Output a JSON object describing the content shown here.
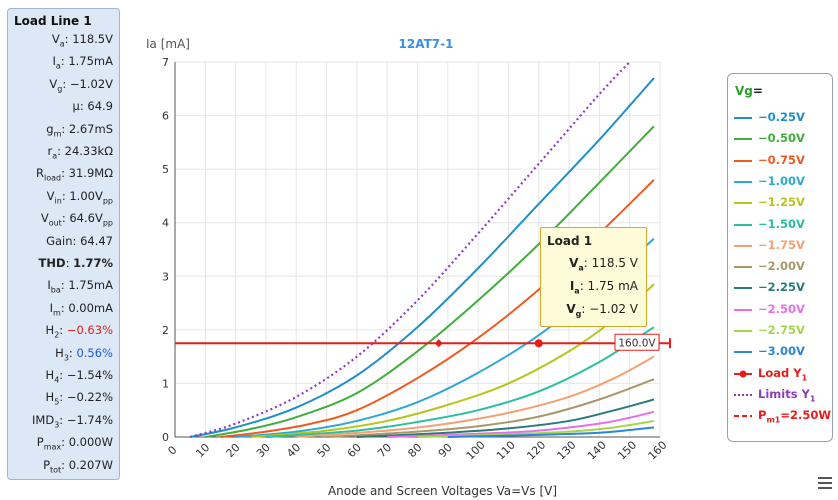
{
  "left_panel": {
    "title": "Load Line 1",
    "rows": [
      {
        "name": "V",
        "sub": "a",
        "value": "118.5V"
      },
      {
        "name": "I",
        "sub": "a",
        "value": "1.75mA"
      },
      {
        "name": "V",
        "sub": "g",
        "value": "−1.02V"
      },
      {
        "name": "μ",
        "sub": "",
        "value": "64.9"
      },
      {
        "name": "g",
        "sub": "m",
        "value": "2.67mS"
      },
      {
        "name": "r",
        "sub": "a",
        "value": "24.33kΩ"
      },
      {
        "name": "R",
        "sub": "load",
        "value": "31.9MΩ"
      },
      {
        "name": "V",
        "sub": "in",
        "value": "1.00V",
        "unit_sub": "pp"
      },
      {
        "name": "V",
        "sub": "out",
        "value": "64.6V",
        "unit_sub": "pp"
      },
      {
        "name": "Gain",
        "sub": "",
        "value": "64.47"
      },
      {
        "name": "THD",
        "sub": "",
        "value": "1.77%",
        "bold": true
      },
      {
        "name": "I",
        "sub": "ba",
        "value": "1.75mA"
      },
      {
        "name": "I",
        "sub": "m",
        "value": "0.00mA"
      },
      {
        "name": "H",
        "sub": "2",
        "value": "−0.63%",
        "color": "red"
      },
      {
        "name": "H",
        "sub": "3",
        "value": "0.56%",
        "color": "blue"
      },
      {
        "name": "H",
        "sub": "4",
        "value": "−1.54%"
      },
      {
        "name": "H",
        "sub": "5",
        "value": "−0.22%"
      },
      {
        "name": "IMD",
        "sub": "3",
        "value": "−1.74%"
      },
      {
        "name": "P",
        "sub": "max",
        "value": "0.000W"
      },
      {
        "name": "P",
        "sub": "tot",
        "value": "0.207W"
      }
    ]
  },
  "tooltip": {
    "title": "Load 1",
    "rows": [
      {
        "name": "V",
        "sub": "a",
        "value": "118.5 V"
      },
      {
        "name": "I",
        "sub": "a",
        "value": "1.75 mA"
      },
      {
        "name": "V",
        "sub": "g",
        "value": "−1.02 V"
      }
    ]
  },
  "legend": {
    "title_prefix": "Vg",
    "title_suffix": "=",
    "load_label": "Load Y",
    "load_label_sub": "1",
    "limits_label": "Limits Y",
    "limits_label_sub": "1",
    "pmax_label_main": "P",
    "pmax_label_sub": "m",
    "pmax_label_sub2": "1",
    "pmax_label_value": "=2.50W"
  },
  "chart_data": {
    "type": "line",
    "title": "12AT7-1",
    "xlabel": "Anode and Screen Voltages Va=Vs [V]",
    "ylabel": "Ia [mA]",
    "xlim": [
      0,
      160
    ],
    "ylim": [
      0,
      7
    ],
    "x_ticks": [
      0,
      10,
      20,
      30,
      40,
      50,
      60,
      70,
      80,
      90,
      100,
      110,
      120,
      130,
      140,
      150,
      160
    ],
    "y_ticks": [
      0,
      1,
      2,
      3,
      4,
      5,
      6,
      7
    ],
    "grid": true,
    "legend_position": "right",
    "series": [
      {
        "name": "−0.25V",
        "color": "#1f8fc8",
        "x": [
          5,
          20,
          40,
          60,
          80,
          100,
          120,
          140,
          158
        ],
        "y": [
          0,
          0.18,
          0.55,
          1.15,
          2.05,
          3.15,
          4.35,
          5.55,
          6.7
        ]
      },
      {
        "name": "−0.50V",
        "color": "#3fae3a",
        "x": [
          10,
          25,
          40,
          60,
          80,
          100,
          120,
          140,
          158
        ],
        "y": [
          0,
          0.15,
          0.37,
          0.82,
          1.6,
          2.55,
          3.6,
          4.75,
          5.8
        ]
      },
      {
        "name": "−0.75V",
        "color": "#f05a1e",
        "x": [
          15,
          30,
          45,
          60,
          80,
          100,
          120,
          140,
          158
        ],
        "y": [
          0,
          0.1,
          0.25,
          0.5,
          1.1,
          1.85,
          2.75,
          3.8,
          4.8
        ]
      },
      {
        "name": "−1.00V",
        "color": "#2aa8d6",
        "x": [
          20,
          40,
          60,
          80,
          100,
          120,
          140,
          158
        ],
        "y": [
          0,
          0.1,
          0.3,
          0.65,
          1.2,
          1.9,
          2.8,
          3.7
        ]
      },
      {
        "name": "−1.25V",
        "color": "#b7c41a",
        "x": [
          25,
          50,
          70,
          90,
          110,
          130,
          145,
          158
        ],
        "y": [
          0,
          0.12,
          0.3,
          0.6,
          1.0,
          1.6,
          2.2,
          2.85
        ]
      },
      {
        "name": "−1.50V",
        "color": "#28c0a0",
        "x": [
          30,
          60,
          80,
          100,
          120,
          140,
          158
        ],
        "y": [
          0,
          0.12,
          0.28,
          0.5,
          0.85,
          1.4,
          2.05
        ]
      },
      {
        "name": "−1.75V",
        "color": "#f5a070",
        "x": [
          40,
          70,
          90,
          110,
          130,
          145,
          158
        ],
        "y": [
          0,
          0.12,
          0.25,
          0.45,
          0.75,
          1.1,
          1.5
        ]
      },
      {
        "name": "−2.00V",
        "color": "#a9976a",
        "x": [
          50,
          80,
          100,
          120,
          140,
          158
        ],
        "y": [
          0,
          0.1,
          0.2,
          0.38,
          0.7,
          1.08
        ]
      },
      {
        "name": "−2.25V",
        "color": "#2b7a78",
        "x": [
          60,
          90,
          110,
          130,
          145,
          158
        ],
        "y": [
          0,
          0.08,
          0.16,
          0.3,
          0.5,
          0.7
        ]
      },
      {
        "name": "−2.50V",
        "color": "#e86ee8",
        "x": [
          70,
          100,
          120,
          140,
          150,
          158
        ],
        "y": [
          0,
          0.06,
          0.12,
          0.25,
          0.36,
          0.47
        ]
      },
      {
        "name": "−2.75V",
        "color": "#a5d64a",
        "x": [
          80,
          110,
          130,
          145,
          158
        ],
        "y": [
          0,
          0.05,
          0.1,
          0.18,
          0.3
        ]
      },
      {
        "name": "−3.00V",
        "color": "#2b86d8",
        "x": [
          90,
          120,
          140,
          150,
          158
        ],
        "y": [
          0,
          0.04,
          0.08,
          0.13,
          0.18
        ]
      }
    ],
    "load_line": {
      "name": "Load Y1",
      "color": "#e81c1c",
      "y": 1.75,
      "points": [
        {
          "x": 87,
          "y": 1.75
        },
        {
          "x": 120,
          "y": 1.75
        }
      ]
    },
    "limits": {
      "name": "Limits Y1",
      "color": "#8c3cbf",
      "x": [
        5,
        20,
        40,
        60,
        80,
        100,
        120,
        140,
        150
      ],
      "y": [
        0,
        0.25,
        0.75,
        1.5,
        2.55,
        3.8,
        5.1,
        6.4,
        7.0
      ]
    },
    "pmax": {
      "name": "Pm1=2.50W",
      "color": "#e81c1c"
    },
    "marker_label": "160.0V"
  }
}
